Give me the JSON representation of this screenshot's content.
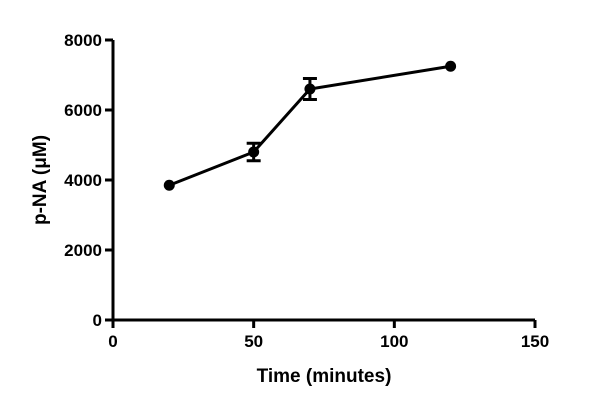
{
  "chart_data": {
    "type": "line",
    "title": "",
    "xlabel": "Time (minutes)",
    "ylabel": "p-NA (μM)",
    "xlim": [
      0,
      150
    ],
    "ylim": [
      0,
      8000
    ],
    "x_ticks": [
      0,
      50,
      100,
      150
    ],
    "y_ticks": [
      0,
      2000,
      4000,
      6000,
      8000
    ],
    "grid": false,
    "legend": null,
    "series": [
      {
        "name": "p-NA",
        "marker": "circle",
        "color": "#000000",
        "x": [
          20,
          50,
          70,
          120
        ],
        "values": [
          3850,
          4800,
          6600,
          7250
        ],
        "error": [
          0,
          250,
          300,
          0
        ]
      }
    ]
  },
  "labels": {
    "xlabel": "Time (minutes)",
    "ylabel": "p-NA (μM)",
    "x_ticks": [
      "0",
      "50",
      "100",
      "150"
    ],
    "y_ticks": [
      "0",
      "2000",
      "4000",
      "6000",
      "8000"
    ]
  }
}
